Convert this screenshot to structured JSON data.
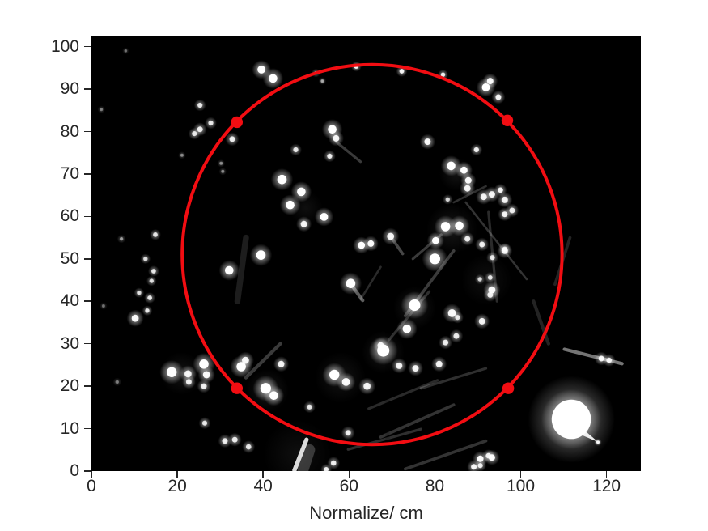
{
  "chart_data": {
    "type": "scatter",
    "title": "",
    "xlabel": "Normalize/ cm",
    "ylabel": "",
    "xlim": [
      0,
      128
    ],
    "ylim": [
      0,
      102.4
    ],
    "x_ticks": [
      0,
      20,
      40,
      60,
      80,
      100,
      120
    ],
    "y_ticks": [
      0,
      10,
      20,
      30,
      40,
      50,
      60,
      70,
      80,
      90,
      100
    ],
    "grid": "off",
    "legend": "none",
    "colors": {
      "image_background": "#000000",
      "spot_color": "#ffffff",
      "streak_color": "#e8e8e8",
      "haze_color": "#bbbbbb",
      "overlay_red": "#f20d12",
      "tick_color": "#262626",
      "figure_background": "#ffffff"
    },
    "fitted_circle": {
      "cx": 65.4,
      "cy": 51.0,
      "r": 44.5,
      "stroke_width_px": 4
    },
    "marker_points": [
      [
        33.9,
        82.2
      ],
      [
        96.9,
        82.6
      ],
      [
        33.9,
        19.5
      ],
      [
        97.1,
        19.5
      ]
    ],
    "marker_radius_px": 7.2,
    "big_blob": {
      "x": 111.8,
      "y": 12.2,
      "core": 4.6,
      "mid": 7.0,
      "glow": 10.2,
      "tail": [
        [
          113.2,
          11.0
        ],
        [
          118.1,
          6.8
        ],
        [
          112.6,
          9.2
        ]
      ]
    },
    "seams": [
      {
        "x": 69.0,
        "w": 1.0,
        "op": 0.16
      },
      {
        "x": 86.0,
        "w": 0.8,
        "op": 0.08
      }
    ],
    "hazes": [
      [
        84.0,
        57.0,
        6.0,
        0.12
      ],
      [
        75.3,
        38.5,
        5.0,
        0.12
      ],
      [
        68.0,
        28.0,
        5.0,
        0.12
      ],
      [
        58.0,
        22.0,
        6.0,
        0.1
      ],
      [
        41.0,
        19.0,
        5.0,
        0.12
      ],
      [
        21.0,
        23.0,
        5.0,
        0.1
      ],
      [
        48.0,
        4.0,
        8.0,
        0.08
      ],
      [
        92.0,
        45.0,
        6.0,
        0.08
      ],
      [
        85.0,
        70.0,
        4.0,
        0.1
      ],
      [
        50.0,
        62.0,
        4.0,
        0.08
      ]
    ],
    "streaks": [
      [
        50.1,
        7.4,
        47.3,
        0.2,
        1.0,
        0.95
      ],
      [
        50.8,
        5.0,
        49.3,
        0.3,
        2.6,
        0.22
      ],
      [
        110.2,
        28.7,
        123.6,
        25.3,
        0.8,
        0.5
      ],
      [
        87.2,
        63.3,
        101.4,
        45.2,
        0.5,
        0.22
      ],
      [
        92.5,
        61.0,
        94.5,
        40.0,
        0.6,
        0.18
      ],
      [
        67.4,
        8.0,
        84.4,
        15.6,
        0.7,
        0.22
      ],
      [
        59.8,
        5.1,
        76.8,
        9.9,
        0.6,
        0.2
      ],
      [
        73.1,
        0.5,
        91.9,
        7.1,
        0.7,
        0.22
      ],
      [
        76.8,
        19.5,
        91.9,
        24.2,
        0.6,
        0.2
      ],
      [
        64.6,
        14.7,
        80.6,
        21.4,
        0.6,
        0.18
      ],
      [
        73.1,
        36.6,
        84.4,
        51.9,
        0.7,
        0.25
      ],
      [
        69.3,
        30.9,
        78.7,
        42.3,
        0.6,
        0.2
      ],
      [
        62.7,
        40.4,
        67.4,
        48.1,
        0.5,
        0.18
      ],
      [
        74.9,
        50.0,
        81.5,
        55.7,
        0.6,
        0.25
      ],
      [
        84.4,
        63.3,
        91.9,
        67.1,
        0.5,
        0.2
      ],
      [
        57.0,
        77.6,
        62.7,
        72.9,
        0.6,
        0.25
      ],
      [
        60.6,
        43.8,
        63.2,
        40.2,
        0.8,
        0.4
      ],
      [
        69.9,
        55.0,
        72.5,
        51.2,
        0.7,
        0.3
      ],
      [
        36.0,
        55.0,
        34.0,
        40.0,
        1.4,
        0.12
      ],
      [
        44.0,
        30.0,
        36.0,
        22.0,
        0.8,
        0.25
      ],
      [
        103.0,
        40.0,
        106.5,
        30.0,
        0.8,
        0.15
      ],
      [
        111.5,
        55.0,
        108.0,
        44.0,
        0.7,
        0.15
      ]
    ],
    "spots": [
      [
        39.6,
        94.6,
        2.2,
        1
      ],
      [
        42.3,
        92.5,
        2.4,
        1
      ],
      [
        25.3,
        86.2,
        1.4,
        0.8
      ],
      [
        27.8,
        82.0,
        1.4,
        0.8
      ],
      [
        25.3,
        80.5,
        1.6,
        0.85
      ],
      [
        24.0,
        79.5,
        1.4,
        0.8
      ],
      [
        32.8,
        78.2,
        1.6,
        0.85
      ],
      [
        44.4,
        68.7,
        2.6,
        1
      ],
      [
        61.7,
        95.3,
        1.2,
        0.9
      ],
      [
        72.3,
        94.2,
        1.3,
        0.9
      ],
      [
        81.9,
        93.4,
        1.2,
        0.85
      ],
      [
        52.3,
        93.8,
        1.0,
        0.6
      ],
      [
        53.8,
        91.9,
        0.9,
        0.5
      ],
      [
        91.9,
        90.4,
        2.2,
        1
      ],
      [
        92.9,
        91.9,
        1.8,
        0.95
      ],
      [
        94.8,
        88.1,
        1.6,
        0.9
      ],
      [
        56.1,
        80.5,
        2.4,
        1
      ],
      [
        57.0,
        78.4,
        1.8,
        0.9
      ],
      [
        47.6,
        75.7,
        1.4,
        0.8
      ],
      [
        55.5,
        74.2,
        1.4,
        0.85
      ],
      [
        78.3,
        77.6,
        1.8,
        0.95
      ],
      [
        89.7,
        75.7,
        1.4,
        0.85
      ],
      [
        83.8,
        71.9,
        2.4,
        1
      ],
      [
        86.8,
        70.9,
        2.0,
        1
      ],
      [
        87.8,
        68.5,
        1.8,
        0.95
      ],
      [
        95.3,
        66.2,
        1.5,
        0.9
      ],
      [
        87.6,
        66.6,
        1.8,
        0.9
      ],
      [
        91.4,
        64.6,
        1.8,
        0.9
      ],
      [
        93.3,
        65.2,
        1.8,
        0.9
      ],
      [
        96.3,
        63.9,
        1.8,
        0.9
      ],
      [
        98.0,
        61.4,
        1.6,
        0.85
      ],
      [
        96.3,
        60.5,
        1.6,
        0.9
      ],
      [
        48.9,
        65.8,
        2.4,
        1
      ],
      [
        46.3,
        62.7,
        2.4,
        1
      ],
      [
        54.2,
        59.9,
        2.2,
        1
      ],
      [
        49.5,
        58.2,
        1.8,
        0.9
      ],
      [
        82.5,
        57.6,
        2.6,
        1
      ],
      [
        85.7,
        57.8,
        2.4,
        1
      ],
      [
        80.2,
        54.3,
        2.0,
        1
      ],
      [
        80.0,
        50.0,
        3.0,
        1
      ],
      [
        87.6,
        54.7,
        1.6,
        0.85
      ],
      [
        91.0,
        53.4,
        1.6,
        0.85
      ],
      [
        96.3,
        51.9,
        1.8,
        0.9
      ],
      [
        93.4,
        50.3,
        1.4,
        0.8
      ],
      [
        96.3,
        52.3,
        1.4,
        0.8
      ],
      [
        62.9,
        53.2,
        2.0,
        1
      ],
      [
        65.1,
        53.6,
        1.8,
        0.95
      ],
      [
        69.7,
        55.3,
        2.0,
        0.9
      ],
      [
        39.5,
        50.9,
        2.6,
        1
      ],
      [
        32.1,
        47.3,
        2.4,
        1
      ],
      [
        60.4,
        44.2,
        2.6,
        1
      ],
      [
        75.3,
        39.1,
        3.2,
        1
      ],
      [
        73.5,
        33.5,
        2.4,
        1
      ],
      [
        84.0,
        37.2,
        2.2,
        0.95
      ],
      [
        85.3,
        36.2,
        1.4,
        0.8
      ],
      [
        93.3,
        42.7,
        2.0,
        0.95
      ],
      [
        92.9,
        41.5,
        1.6,
        0.85
      ],
      [
        92.9,
        45.6,
        1.3,
        0.8
      ],
      [
        90.5,
        45.2,
        1.2,
        0.7
      ],
      [
        91.0,
        35.3,
        1.8,
        0.9
      ],
      [
        85.0,
        31.8,
        1.6,
        0.85
      ],
      [
        67.4,
        29.6,
        1.8,
        0.9
      ],
      [
        14.9,
        55.7,
        1.3,
        0.8
      ],
      [
        12.6,
        50.0,
        1.2,
        0.75
      ],
      [
        14.5,
        47.1,
        1.3,
        0.8
      ],
      [
        14.0,
        44.8,
        1.2,
        0.75
      ],
      [
        11.1,
        42.0,
        1.2,
        0.75
      ],
      [
        13.6,
        40.8,
        1.3,
        0.8
      ],
      [
        13.0,
        37.8,
        1.2,
        0.8
      ],
      [
        10.2,
        36.0,
        2.0,
        0.95
      ],
      [
        7.0,
        54.7,
        1.0,
        0.45
      ],
      [
        2.3,
        85.2,
        0.9,
        0.35
      ],
      [
        2.8,
        38.9,
        0.9,
        0.3
      ],
      [
        6.0,
        21.0,
        1.0,
        0.35
      ],
      [
        21.1,
        74.4,
        0.9,
        0.4
      ],
      [
        30.2,
        72.5,
        0.9,
        0.4
      ],
      [
        30.6,
        70.6,
        0.9,
        0.4
      ],
      [
        8.0,
        99.0,
        0.8,
        0.3
      ],
      [
        18.7,
        23.3,
        2.8,
        1
      ],
      [
        22.5,
        22.9,
        2.0,
        0.9
      ],
      [
        26.2,
        25.2,
        2.6,
        1
      ],
      [
        26.8,
        22.7,
        2.0,
        0.95
      ],
      [
        22.7,
        21.0,
        1.6,
        0.85
      ],
      [
        26.2,
        20.0,
        1.6,
        0.85
      ],
      [
        34.9,
        24.6,
        2.6,
        1
      ],
      [
        35.9,
        26.1,
        2.0,
        0.9
      ],
      [
        40.6,
        19.5,
        3.0,
        1
      ],
      [
        42.5,
        17.8,
        2.4,
        1
      ],
      [
        44.2,
        25.2,
        1.8,
        0.9
      ],
      [
        26.4,
        11.3,
        1.4,
        0.8
      ],
      [
        31.1,
        7.1,
        1.6,
        0.85
      ],
      [
        33.4,
        7.4,
        1.6,
        0.85
      ],
      [
        36.6,
        5.7,
        1.5,
        0.8
      ],
      [
        50.8,
        15.1,
        1.4,
        0.8
      ],
      [
        59.8,
        9.0,
        1.6,
        0.85
      ],
      [
        56.4,
        1.9,
        1.5,
        0.85
      ],
      [
        54.7,
        0.4,
        1.3,
        0.85
      ],
      [
        68.0,
        28.4,
        3.4,
        1
      ],
      [
        56.6,
        22.7,
        2.8,
        1
      ],
      [
        59.3,
        21.0,
        2.2,
        0.95
      ],
      [
        64.2,
        20.0,
        2.0,
        0.9
      ],
      [
        71.7,
        24.8,
        1.8,
        0.9
      ],
      [
        75.5,
        24.2,
        1.8,
        0.9
      ],
      [
        81.0,
        25.2,
        1.8,
        0.9
      ],
      [
        82.5,
        30.3,
        1.6,
        0.85
      ],
      [
        90.6,
        2.9,
        1.8,
        0.95
      ],
      [
        93.3,
        3.2,
        1.8,
        0.95
      ],
      [
        89.1,
        1.0,
        1.6,
        0.9
      ],
      [
        92.5,
        3.6,
        1.5,
        0.85
      ],
      [
        90.6,
        1.3,
        1.4,
        0.85
      ],
      [
        118.8,
        26.5,
        1.6,
        0.9
      ],
      [
        120.6,
        26.1,
        1.5,
        0.85
      ],
      [
        118.0,
        6.8,
        0.9,
        0.9
      ],
      [
        83.0,
        64.0,
        1.2,
        0.7
      ]
    ]
  }
}
